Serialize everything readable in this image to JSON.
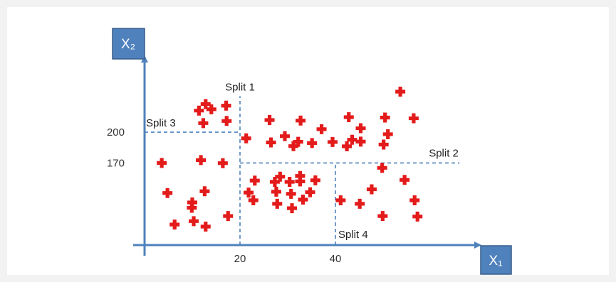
{
  "axes": {
    "x_label": "X₁",
    "y_label": "X₂",
    "x_ticks": [
      20,
      40
    ],
    "y_ticks": [
      200,
      170
    ],
    "x_range": [
      -2,
      68
    ],
    "y_range": [
      90,
      240
    ]
  },
  "splits": [
    {
      "label": "Split 1",
      "axis": "x",
      "value": 20,
      "from": 90,
      "to": 235
    },
    {
      "label": "Split 2",
      "axis": "y",
      "value": 170,
      "from": 20,
      "to": 66
    },
    {
      "label": "Split 3",
      "axis": "y",
      "value": 200,
      "from": 0,
      "to": 20
    },
    {
      "label": "Split 4",
      "axis": "x",
      "value": 40,
      "from": 90,
      "to": 170
    }
  ],
  "points": [
    [
      3.6,
      170
    ],
    [
      4.8,
      140.7
    ],
    [
      6.3,
      110
    ],
    [
      9.9,
      126.3
    ],
    [
      10,
      131.5
    ],
    [
      10.3,
      113.3
    ],
    [
      11.4,
      221
    ],
    [
      11.8,
      172.8
    ],
    [
      12.3,
      208.8
    ],
    [
      12.6,
      142.4
    ],
    [
      12.8,
      108
    ],
    [
      12.8,
      227.4
    ],
    [
      14,
      222.3
    ],
    [
      16.4,
      169.8
    ],
    [
      17.1,
      225.8
    ],
    [
      17.2,
      210.9
    ],
    [
      17.5,
      118.3
    ],
    [
      21.3,
      194
    ],
    [
      21.8,
      141.1
    ],
    [
      22.8,
      133.6
    ],
    [
      23.1,
      152.8
    ],
    [
      26.2,
      211.8
    ],
    [
      26.5,
      190
    ],
    [
      27.3,
      151.6
    ],
    [
      27.6,
      142
    ],
    [
      27.8,
      130.2
    ],
    [
      28.4,
      156.6
    ],
    [
      29.4,
      196.1
    ],
    [
      30.4,
      151.6
    ],
    [
      30.7,
      139.9
    ],
    [
      30.9,
      125.9
    ],
    [
      31.2,
      186.4
    ],
    [
      32.2,
      190.6
    ],
    [
      32.6,
      157.3
    ],
    [
      32.6,
      152
    ],
    [
      32.7,
      211.3
    ],
    [
      33.2,
      134.3
    ],
    [
      34.7,
      141.5
    ],
    [
      35.1,
      189.4
    ],
    [
      35.8,
      153.1
    ],
    [
      37.1,
      202.9
    ],
    [
      39.4,
      190.4
    ],
    [
      41.1,
      133.6
    ],
    [
      42.4,
      186.2
    ],
    [
      42.8,
      214.6
    ],
    [
      43.5,
      192.6
    ],
    [
      45.1,
      130.2
    ],
    [
      45.3,
      190.8
    ],
    [
      45.3,
      203.8
    ],
    [
      47.6,
      144.3
    ],
    [
      49.8,
      165.2
    ],
    [
      49.9,
      118.3
    ],
    [
      50.1,
      187.9
    ],
    [
      50.4,
      214.2
    ],
    [
      51,
      198
    ],
    [
      53.6,
      239.5
    ],
    [
      54.5,
      153.5
    ],
    [
      56.4,
      213.5
    ],
    [
      56.6,
      133.6
    ],
    [
      57.2,
      117.8
    ]
  ]
}
